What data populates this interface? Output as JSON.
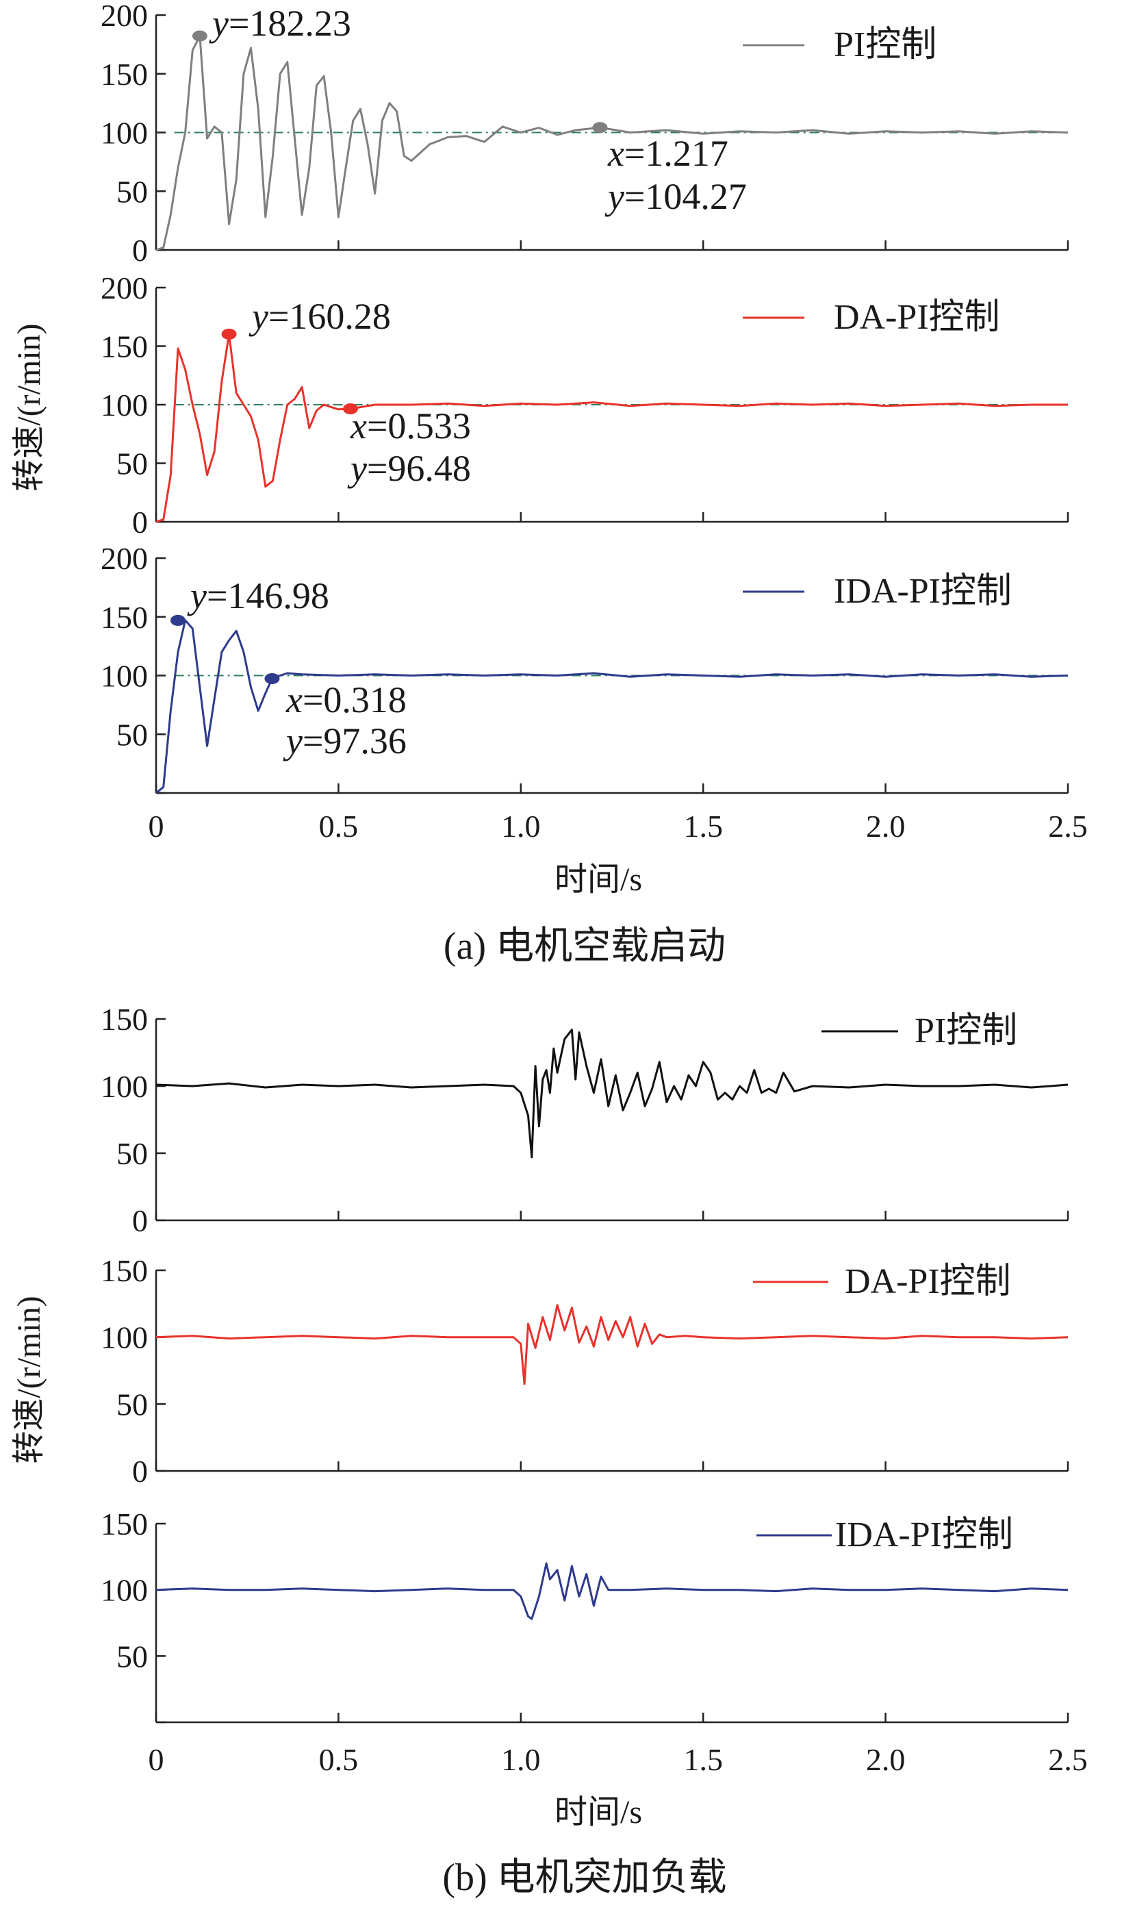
{
  "chart_data": [
    {
      "id": "a",
      "type": "line",
      "caption": "(a)  电机空载启动",
      "xlabel": "时间/s",
      "ylabel": "转速/(r/min)",
      "xlim": [
        0,
        2.5
      ],
      "xticks": [
        "0",
        "0.5",
        "1.0",
        "1.5",
        "2.0",
        "2.5"
      ],
      "reference_value": 100,
      "panels": [
        {
          "name": "PI控制",
          "color": "#7f7f7f",
          "ylim": [
            0,
            200
          ],
          "yticks": [
            "0",
            "50",
            "100",
            "150",
            "200"
          ],
          "x": [
            0,
            0.02,
            0.04,
            0.06,
            0.08,
            0.1,
            0.12,
            0.14,
            0.16,
            0.18,
            0.2,
            0.22,
            0.24,
            0.26,
            0.28,
            0.3,
            0.32,
            0.34,
            0.36,
            0.38,
            0.4,
            0.42,
            0.44,
            0.46,
            0.48,
            0.5,
            0.52,
            0.54,
            0.56,
            0.58,
            0.6,
            0.62,
            0.64,
            0.66,
            0.68,
            0.7,
            0.75,
            0.8,
            0.85,
            0.9,
            0.95,
            1.0,
            1.05,
            1.1,
            1.15,
            1.217,
            1.3,
            1.4,
            1.5,
            1.6,
            1.7,
            1.8,
            1.9,
            2.0,
            2.1,
            2.2,
            2.3,
            2.4,
            2.5
          ],
          "y": [
            0,
            2,
            30,
            70,
            100,
            170,
            182.23,
            95,
            105,
            100,
            22,
            60,
            150,
            172,
            120,
            28,
            80,
            150,
            160,
            95,
            30,
            70,
            140,
            148,
            100,
            28,
            70,
            110,
            120,
            90,
            48,
            110,
            125,
            118,
            80,
            76,
            90,
            96,
            97,
            92,
            105,
            100,
            104,
            98,
            102,
            104.27,
            100,
            102,
            99,
            101,
            100,
            102,
            99,
            101,
            100,
            101,
            99,
            101,
            100
          ],
          "marks": [
            {
              "x": 0.12,
              "y": 182.23,
              "labels": [
                "y=182.23"
              ]
            },
            {
              "x": 1.217,
              "y": 104.27,
              "labels": [
                "x=1.217",
                "y=104.27"
              ]
            }
          ]
        },
        {
          "name": "DA-PI控制",
          "color": "#e8322b",
          "ylim": [
            0,
            200
          ],
          "yticks": [
            "0",
            "50",
            "100",
            "150",
            "200"
          ],
          "x": [
            0,
            0.02,
            0.04,
            0.06,
            0.08,
            0.1,
            0.12,
            0.14,
            0.16,
            0.18,
            0.2,
            0.22,
            0.24,
            0.26,
            0.28,
            0.3,
            0.32,
            0.34,
            0.36,
            0.38,
            0.4,
            0.42,
            0.44,
            0.46,
            0.48,
            0.5,
            0.533,
            0.6,
            0.7,
            0.8,
            0.9,
            1.0,
            1.1,
            1.2,
            1.3,
            1.4,
            1.5,
            1.6,
            1.7,
            1.8,
            1.9,
            2.0,
            2.1,
            2.2,
            2.3,
            2.4,
            2.5
          ],
          "y": [
            0,
            2,
            40,
            148,
            130,
            100,
            75,
            40,
            60,
            120,
            160.28,
            110,
            100,
            90,
            70,
            30,
            35,
            70,
            100,
            105,
            115,
            80,
            95,
            100,
            98,
            96,
            96.48,
            100,
            100,
            101,
            99,
            101,
            100,
            102,
            99,
            101,
            100,
            99,
            101,
            100,
            101,
            99,
            100,
            101,
            99,
            100,
            100
          ],
          "marks": [
            {
              "x": 0.2,
              "y": 160.28,
              "labels": [
                "y=160.28"
              ]
            },
            {
              "x": 0.533,
              "y": 96.48,
              "labels": [
                "x=0.533",
                "y=96.48"
              ]
            }
          ]
        },
        {
          "name": "IDA-PI控制",
          "color": "#2e3a8c",
          "ylim": [
            0,
            200
          ],
          "yticks": [
            "",
            "50",
            "100",
            "150",
            "200"
          ],
          "x": [
            0,
            0.02,
            0.04,
            0.06,
            0.08,
            0.1,
            0.12,
            0.14,
            0.16,
            0.18,
            0.2,
            0.22,
            0.24,
            0.26,
            0.28,
            0.3,
            0.318,
            0.34,
            0.36,
            0.4,
            0.5,
            0.6,
            0.7,
            0.8,
            0.9,
            1.0,
            1.1,
            1.2,
            1.3,
            1.4,
            1.5,
            1.6,
            1.7,
            1.8,
            1.9,
            2.0,
            2.1,
            2.2,
            2.3,
            2.4,
            2.5
          ],
          "y": [
            0,
            5,
            70,
            120,
            146.98,
            140,
            90,
            40,
            80,
            120,
            130,
            138,
            120,
            90,
            70,
            85,
            97.36,
            100,
            102,
            101,
            100,
            101,
            100,
            101,
            100,
            101,
            100,
            102,
            99,
            101,
            100,
            99,
            101,
            100,
            101,
            99,
            101,
            100,
            101,
            99,
            100
          ],
          "marks": [
            {
              "x": 0.06,
              "y": 146.98,
              "labels": [
                "y=146.98"
              ]
            },
            {
              "x": 0.318,
              "y": 97.36,
              "labels": [
                "x=0.318",
                "y=97.36"
              ]
            }
          ]
        }
      ]
    },
    {
      "id": "b",
      "type": "line",
      "caption": "(b)  电机突加负载",
      "xlabel": "时间/s",
      "ylabel": "转速/(r/min)",
      "xlim": [
        0,
        2.5
      ],
      "xticks": [
        "0",
        "0.5",
        "1.0",
        "1.5",
        "2.0",
        "2.5"
      ],
      "panels": [
        {
          "name": "PI控制",
          "color": "#111111",
          "ylim": [
            0,
            150
          ],
          "yticks": [
            "0",
            "50",
            "100",
            "150"
          ],
          "x": [
            0,
            0.1,
            0.2,
            0.3,
            0.4,
            0.5,
            0.6,
            0.7,
            0.8,
            0.9,
            0.98,
            1.0,
            1.02,
            1.03,
            1.04,
            1.05,
            1.06,
            1.07,
            1.08,
            1.09,
            1.1,
            1.12,
            1.14,
            1.15,
            1.16,
            1.18,
            1.2,
            1.22,
            1.24,
            1.26,
            1.28,
            1.3,
            1.32,
            1.34,
            1.36,
            1.38,
            1.4,
            1.42,
            1.44,
            1.46,
            1.48,
            1.5,
            1.52,
            1.54,
            1.56,
            1.58,
            1.6,
            1.62,
            1.64,
            1.66,
            1.68,
            1.7,
            1.72,
            1.75,
            1.8,
            1.9,
            2.0,
            2.1,
            2.2,
            2.3,
            2.4,
            2.5
          ],
          "y": [
            101,
            100,
            102,
            99,
            101,
            100,
            101,
            99,
            100,
            101,
            100,
            95,
            78,
            47,
            115,
            70,
            105,
            112,
            95,
            128,
            110,
            135,
            142,
            105,
            140,
            115,
            95,
            120,
            85,
            108,
            82,
            95,
            110,
            85,
            98,
            118,
            88,
            100,
            90,
            108,
            100,
            118,
            110,
            90,
            95,
            90,
            100,
            95,
            112,
            95,
            98,
            95,
            110,
            96,
            100,
            99,
            101,
            100,
            100,
            101,
            99,
            101
          ],
          "marks": []
        },
        {
          "name": "DA-PI控制",
          "color": "#e8322b",
          "ylim": [
            0,
            150
          ],
          "yticks": [
            "0",
            "50",
            "100",
            "150"
          ],
          "x": [
            0,
            0.1,
            0.2,
            0.3,
            0.4,
            0.5,
            0.6,
            0.7,
            0.8,
            0.9,
            0.98,
            1.0,
            1.01,
            1.02,
            1.04,
            1.06,
            1.08,
            1.1,
            1.12,
            1.14,
            1.16,
            1.18,
            1.2,
            1.22,
            1.24,
            1.26,
            1.28,
            1.3,
            1.32,
            1.34,
            1.36,
            1.38,
            1.4,
            1.45,
            1.5,
            1.6,
            1.7,
            1.8,
            1.9,
            2.0,
            2.1,
            2.2,
            2.3,
            2.4,
            2.5
          ],
          "y": [
            100,
            101,
            99,
            100,
            101,
            100,
            99,
            101,
            100,
            100,
            100,
            95,
            65,
            110,
            92,
            115,
            98,
            124,
            105,
            122,
            96,
            108,
            93,
            115,
            98,
            112,
            100,
            115,
            93,
            110,
            95,
            102,
            100,
            101,
            100,
            99,
            100,
            101,
            100,
            99,
            101,
            100,
            100,
            99,
            100
          ],
          "marks": []
        },
        {
          "name": "IDA-PI控制",
          "color": "#2e3a8c",
          "ylim": [
            0,
            150
          ],
          "yticks": [
            "",
            "50",
            "100",
            "150"
          ],
          "x": [
            0,
            0.1,
            0.2,
            0.3,
            0.4,
            0.5,
            0.6,
            0.7,
            0.8,
            0.9,
            0.98,
            1.0,
            1.02,
            1.03,
            1.05,
            1.07,
            1.08,
            1.1,
            1.12,
            1.14,
            1.16,
            1.18,
            1.2,
            1.22,
            1.24,
            1.3,
            1.4,
            1.5,
            1.6,
            1.7,
            1.8,
            1.9,
            2.0,
            2.1,
            2.2,
            2.3,
            2.4,
            2.5
          ],
          "y": [
            100,
            101,
            100,
            100,
            101,
            100,
            99,
            100,
            101,
            100,
            100,
            95,
            80,
            78,
            95,
            120,
            108,
            115,
            92,
            118,
            95,
            112,
            88,
            110,
            100,
            100,
            101,
            100,
            100,
            99,
            101,
            100,
            100,
            101,
            100,
            99,
            101,
            100
          ],
          "marks": []
        }
      ]
    }
  ]
}
